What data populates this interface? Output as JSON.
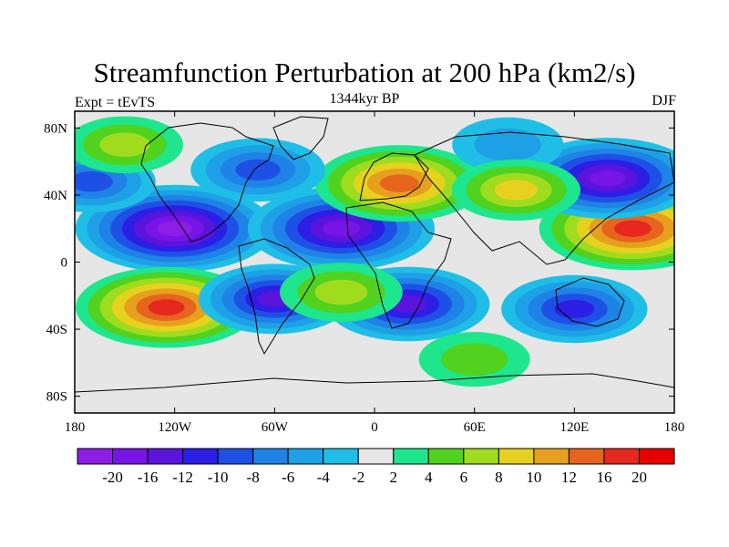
{
  "title": "Streamfunction Perturbation at 200 hPa (km2/s)",
  "left_label": "Expt = tEvTS",
  "center_label": "1344kyr BP",
  "right_label": "DJF",
  "x_ticks": [
    "180",
    "120W",
    "60W",
    "0",
    "60E",
    "120E",
    "180"
  ],
  "y_ticks": [
    "80N",
    "40N",
    "0",
    "40S",
    "80S"
  ],
  "colorbar": {
    "colors": [
      "#8c1ee6",
      "#7814e6",
      "#5a14dc",
      "#2d1ee6",
      "#1e50e6",
      "#1e82e6",
      "#1ea0e6",
      "#1ebee6",
      "#e6e6e6",
      "#1ee68c",
      "#50d21e",
      "#a0dc1e",
      "#e6d21e",
      "#e6a01e",
      "#e6641e",
      "#e6281e",
      "#e60000"
    ],
    "labels": [
      "-20",
      "-16",
      "-12",
      "-10",
      "-8",
      "-6",
      "-4",
      "-2",
      "2",
      "4",
      "6",
      "8",
      "10",
      "12",
      "16",
      "20"
    ]
  },
  "chart_data": {
    "type": "heatmap",
    "title": "Streamfunction Perturbation at 200 hPa (km2/s)",
    "subtitle": "1344kyr BP",
    "left_string": "Expt = tEvTS",
    "right_string": "DJF",
    "x_range": [
      -180,
      180
    ],
    "y_range": [
      -90,
      90
    ],
    "x_ticks": [
      "180",
      "120W",
      "60W",
      "0",
      "60E",
      "120E",
      "180"
    ],
    "y_ticks": [
      "80N",
      "40N",
      "0",
      "40S",
      "80S"
    ],
    "contour_levels": [
      -20,
      -16,
      -12,
      -10,
      -8,
      -6,
      -4,
      -2,
      2,
      4,
      6,
      8,
      10,
      12,
      16,
      20
    ],
    "features": [
      {
        "lon": -120,
        "lat": 20,
        "value": -20
      },
      {
        "lon": -20,
        "lat": 20,
        "value": -18
      },
      {
        "lon": 155,
        "lat": 20,
        "value": 18
      },
      {
        "lon": 140,
        "lat": 50,
        "value": -17
      },
      {
        "lon": 15,
        "lat": 47,
        "value": 15
      },
      {
        "lon": -125,
        "lat": -27,
        "value": 17
      },
      {
        "lon": -60,
        "lat": -22,
        "value": -12
      },
      {
        "lon": 20,
        "lat": -25,
        "value": -14
      },
      {
        "lon": 120,
        "lat": -28,
        "value": -11
      },
      {
        "lon": -70,
        "lat": 55,
        "value": -9
      },
      {
        "lon": -170,
        "lat": 48,
        "value": -8
      },
      {
        "lon": -150,
        "lat": 70,
        "value": 6
      },
      {
        "lon": 80,
        "lat": 70,
        "value": -5
      },
      {
        "lon": 85,
        "lat": 43,
        "value": 8
      },
      {
        "lon": -20,
        "lat": -18,
        "value": 7
      },
      {
        "lon": 60,
        "lat": -58,
        "value": 5
      }
    ]
  }
}
